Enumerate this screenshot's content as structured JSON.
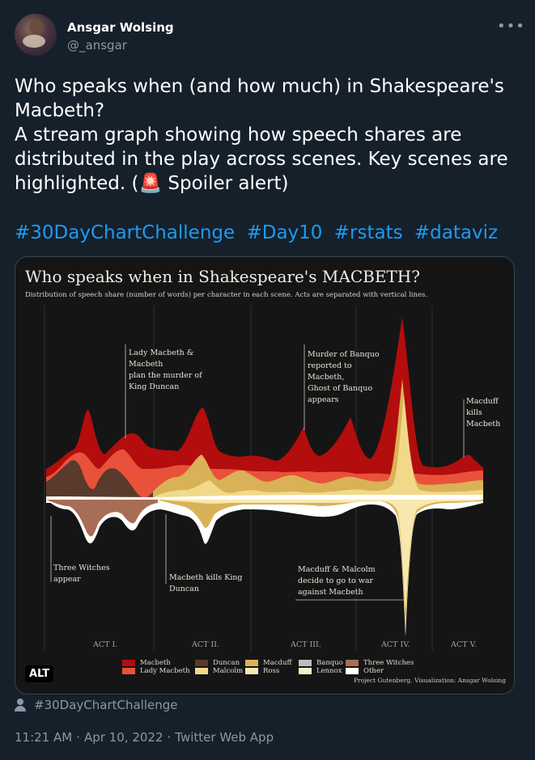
{
  "tweet": {
    "display_name": "Ansgar Wolsing",
    "handle": "@_ansgar",
    "more_icon": "more-horizontal-icon",
    "text": "Who speaks when (and how much) in Shakespeare's\nMacbeth?\nA stream graph showing how speech shares are\ndistributed in the play across scenes. Key scenes are\nhighlighted. (🚨 Spoiler alert)",
    "hashtags": [
      "#30DayChartChallenge",
      "#Day10",
      "#rstats",
      "#dataviz"
    ],
    "alt_badge": "ALT",
    "context_label": "#30DayChartChallenge",
    "time": "11:21 AM",
    "date": "Apr 10, 2022",
    "source": "Twitter Web App",
    "separator": "·"
  },
  "chart_data": {
    "type": "area",
    "title": "Who speaks when in Shakespeare's MACBETH?",
    "subtitle": "Distribution of speech share (number of words) per character in each scene. Acts are separated with vertical lines.",
    "credit": "Project Gutenberg. Visualization: Ansgar Wolsing",
    "acts": [
      "ACT I.",
      "ACT II.",
      "ACT III.",
      "ACT IV.",
      "ACT V."
    ],
    "annotations": [
      "Lady Macbeth &\nMacbeth\nplan the murder of\nKing Duncan",
      "Murder of Banquo\nreported to\nMacbeth,\nGhost of Banquo\nappears",
      "Macduff\nkills\nMacbeth",
      "Three Witches\nappear",
      "Macbeth kills King\nDuncan",
      "Macduff & Malcolm\ndecide to go to war\nagainst Macbeth"
    ],
    "legend": [
      {
        "name": "Macbeth",
        "color": "#b30d0d"
      },
      {
        "name": "Lady Macbeth",
        "color": "#e8523a"
      },
      {
        "name": "Duncan",
        "color": "#5a3a2c"
      },
      {
        "name": "Malcolm",
        "color": "#f2d98a"
      },
      {
        "name": "Macduff",
        "color": "#d9b257"
      },
      {
        "name": "Ross",
        "color": "#f7e8b0"
      },
      {
        "name": "Banquo",
        "color": "#bdbdbd"
      },
      {
        "name": "Lennox",
        "color": "#f5f0c8"
      },
      {
        "name": "Three Witches",
        "color": "#a86d55"
      },
      {
        "name": "Other",
        "color": "#ffffff"
      }
    ]
  }
}
